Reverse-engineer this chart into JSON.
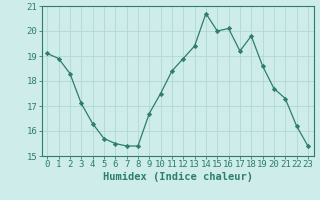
{
  "x": [
    0,
    1,
    2,
    3,
    4,
    5,
    6,
    7,
    8,
    9,
    10,
    11,
    12,
    13,
    14,
    15,
    16,
    17,
    18,
    19,
    20,
    21,
    22,
    23
  ],
  "y": [
    19.1,
    18.9,
    18.3,
    17.1,
    16.3,
    15.7,
    15.5,
    15.4,
    15.4,
    16.7,
    17.5,
    18.4,
    18.9,
    19.4,
    20.7,
    20.0,
    20.1,
    19.2,
    19.8,
    18.6,
    17.7,
    17.3,
    16.2,
    15.4
  ],
  "line_color": "#2e7d6e",
  "marker": "D",
  "marker_size": 2.2,
  "bg_color": "#ceecea",
  "grid_color": "#b0d8d4",
  "axis_color": "#2e7d6e",
  "xlabel": "Humidex (Indice chaleur)",
  "ylim": [
    15,
    21
  ],
  "xlim": [
    -0.5,
    23.5
  ],
  "yticks": [
    15,
    16,
    17,
    18,
    19,
    20,
    21
  ],
  "xticks": [
    0,
    1,
    2,
    3,
    4,
    5,
    6,
    7,
    8,
    9,
    10,
    11,
    12,
    13,
    14,
    15,
    16,
    17,
    18,
    19,
    20,
    21,
    22,
    23
  ],
  "xlabel_fontsize": 7.5,
  "tick_fontsize": 6.5
}
